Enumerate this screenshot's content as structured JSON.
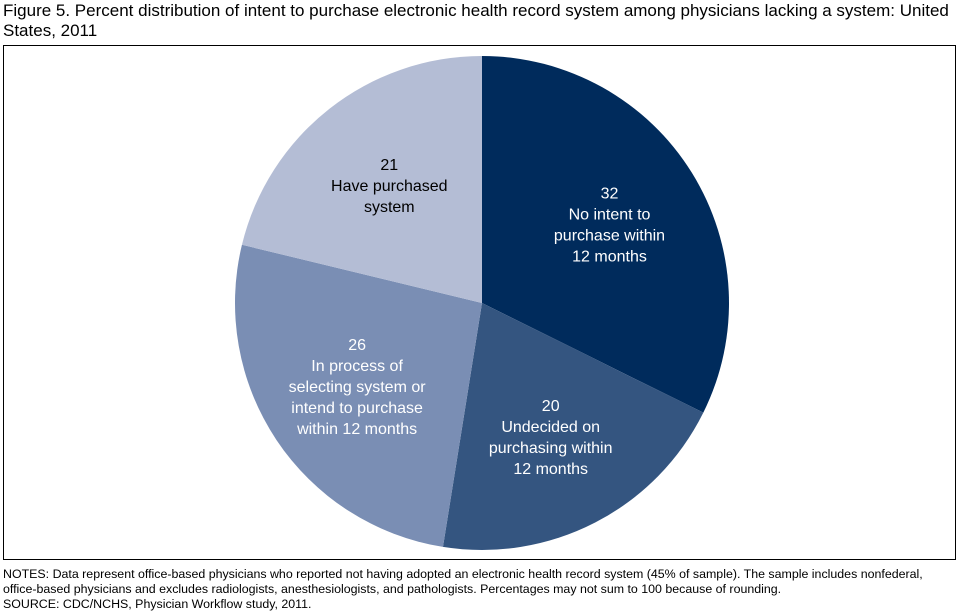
{
  "title": "Figure 5. Percent distribution of intent to purchase electronic health record system among physicians lacking a system: United States, 2011",
  "chart_data": {
    "type": "pie",
    "title": "Figure 5. Percent distribution of intent to purchase electronic health record system among physicians lacking a system: United States, 2011",
    "unit": "percent",
    "start_angle_deg": 0,
    "direction": "clockwise",
    "slices": [
      {
        "label": "No intent to purchase within 12 months",
        "value": 32,
        "color": "#002b5c",
        "text_color": "#ffffff",
        "lines": [
          "32",
          "No intent to",
          "purchase within",
          "12 months"
        ]
      },
      {
        "label": "Undecided on purchasing within 12 months",
        "value": 20,
        "color": "#345580",
        "text_color": "#ffffff",
        "lines": [
          "20",
          "Undecided on",
          "purchasing within",
          "12 months"
        ]
      },
      {
        "label": "In process of selecting system or intend to purchase within 12 months",
        "value": 26,
        "color": "#7a8eb4",
        "text_color": "#ffffff",
        "lines": [
          "26",
          "In process of",
          "selecting system or",
          "intend to purchase",
          "within 12 months"
        ]
      },
      {
        "label": "Have purchased system",
        "value": 21,
        "color": "#b4bdd5",
        "text_color": "#000000",
        "lines": [
          "21",
          "Have purchased",
          "system"
        ]
      }
    ]
  },
  "notes": {
    "text": "NOTES: Data represent office-based physicians who reported not having adopted an electronic health record system (45% of sample). The sample includes nonfederal, office-based physicians and excludes radiologists, anesthesiologists, and pathologists. Percentages may not sum to 100 because of rounding.",
    "source": "SOURCE: CDC/NCHS, Physician Workflow study, 2011."
  }
}
